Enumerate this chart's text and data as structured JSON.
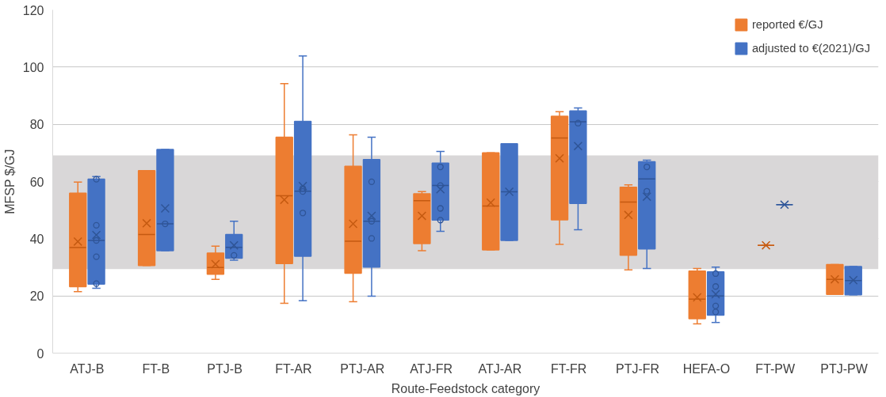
{
  "chart_data": {
    "type": "box",
    "xlabel": "Route-Feedstock category",
    "ylabel": "MFSP $/GJ",
    "categories": [
      "ATJ-B",
      "FT-B",
      "PTJ-B",
      "FT-AR",
      "PTJ-AR",
      "ATJ-FR",
      "ATJ-AR",
      "FT-FR",
      "PTJ-FR",
      "HEFA-O",
      "FT-PW",
      "PTJ-PW"
    ],
    "ylim": [
      0,
      120
    ],
    "yticks": [
      0,
      20,
      40,
      60,
      80,
      100,
      120
    ],
    "grid": "y",
    "legend": "top right",
    "bands": [
      {
        "axis": "y",
        "from": 29.4,
        "to": 69.1,
        "color": "#d9d7d8"
      }
    ],
    "series": [
      {
        "name": "reported €/GJ",
        "color": "#ed7d31",
        "boxes": [
          {
            "low": 21.5,
            "q1": 23.2,
            "median": 36.9,
            "q3": 55.9,
            "high": 59.8,
            "mean": 39.0
          },
          {
            "low": 30.6,
            "q1": 30.6,
            "median": 41.5,
            "q3": 63.8,
            "high": 63.8,
            "mean": 45.4
          },
          {
            "low": 25.8,
            "q1": 27.6,
            "median": 29.9,
            "q3": 35.0,
            "high": 37.4,
            "mean": 31.1
          },
          {
            "low": 17.4,
            "q1": 31.3,
            "median": 55.0,
            "q3": 75.5,
            "high": 94.2,
            "mean": 53.6
          },
          {
            "low": 18.0,
            "q1": 27.9,
            "median": 39.1,
            "q3": 65.3,
            "high": 76.3,
            "mean": 45.2
          },
          {
            "low": 35.8,
            "q1": 38.3,
            "median": 53.3,
            "q3": 55.7,
            "high": 56.5,
            "mean": 48.0
          },
          {
            "low": 36.1,
            "q1": 36.1,
            "median": 51.4,
            "q3": 70.0,
            "high": 70.0,
            "mean": 52.6
          },
          {
            "low": 38.0,
            "q1": 46.6,
            "median": 75.2,
            "q3": 82.8,
            "high": 84.4,
            "mean": 68.1
          },
          {
            "low": 29.1,
            "q1": 34.2,
            "median": 52.8,
            "q3": 58.0,
            "high": 58.8,
            "mean": 48.3
          },
          {
            "low": 10.2,
            "q1": 12.0,
            "median": 18.9,
            "q3": 28.7,
            "high": 29.6,
            "mean": 19.5
          },
          {
            "low": 37.7,
            "q1": 37.7,
            "median": 37.7,
            "q3": 37.7,
            "high": 37.7,
            "mean": 37.7
          },
          {
            "low": 20.5,
            "q1": 20.5,
            "median": 25.8,
            "q3": 31.0,
            "high": 31.0,
            "mean": 25.8
          }
        ]
      },
      {
        "name": "adjusted to €(2021)/GJ",
        "color": "#4472c4",
        "boxes": [
          {
            "low": 22.7,
            "q1": 24.1,
            "median": 39.4,
            "q3": 60.8,
            "high": 61.7,
            "mean": 41.3,
            "outliers": [
              60.8,
              44.7,
              39.4,
              33.7,
              24.3
            ]
          },
          {
            "low": 35.8,
            "q1": 35.8,
            "median": 45.2,
            "q3": 71.2,
            "high": 71.2,
            "mean": 50.6,
            "outliers": [
              45.2
            ]
          },
          {
            "low": 32.5,
            "q1": 33.2,
            "median": 37.0,
            "q3": 41.5,
            "high": 46.1,
            "mean": 37.7,
            "outliers": [
              34.2
            ]
          },
          {
            "low": 18.3,
            "q1": 33.9,
            "median": 56.6,
            "q3": 81.0,
            "high": 103.9,
            "mean": 58.4,
            "outliers": [
              57.6,
              56.5,
              49.0
            ]
          },
          {
            "low": 19.9,
            "q1": 30.1,
            "median": 46.1,
            "q3": 67.7,
            "high": 75.5,
            "mean": 48.0,
            "outliers": [
              59.9,
              46.1,
              40.1
            ]
          },
          {
            "low": 42.6,
            "q1": 46.5,
            "median": 58.6,
            "q3": 66.4,
            "high": 70.5,
            "mean": 57.3,
            "outliers": [
              65.1,
              58.6,
              50.6,
              46.5
            ]
          },
          {
            "low": 39.4,
            "q1": 39.4,
            "median": 56.4,
            "q3": 73.2,
            "high": 73.2,
            "mean": 56.4
          },
          {
            "low": 43.1,
            "q1": 52.3,
            "median": 80.9,
            "q3": 84.7,
            "high": 85.7,
            "mean": 72.4,
            "outliers": [
              80.4
            ]
          },
          {
            "low": 29.6,
            "q1": 36.4,
            "median": 60.9,
            "q3": 66.9,
            "high": 67.5,
            "mean": 54.7,
            "outliers": [
              65.1,
              56.6
            ]
          },
          {
            "low": 10.7,
            "q1": 13.3,
            "median": 20.0,
            "q3": 28.4,
            "high": 30.1,
            "mean": 20.6,
            "outliers": [
              27.8,
              23.3,
              16.5,
              14.4
            ]
          },
          {
            "low": 51.9,
            "q1": 51.9,
            "median": 51.9,
            "q3": 51.9,
            "high": 51.9,
            "mean": 51.9
          },
          {
            "low": 20.4,
            "q1": 20.4,
            "median": 25.4,
            "q3": 30.3,
            "high": 30.3,
            "mean": 25.5
          }
        ]
      }
    ]
  }
}
